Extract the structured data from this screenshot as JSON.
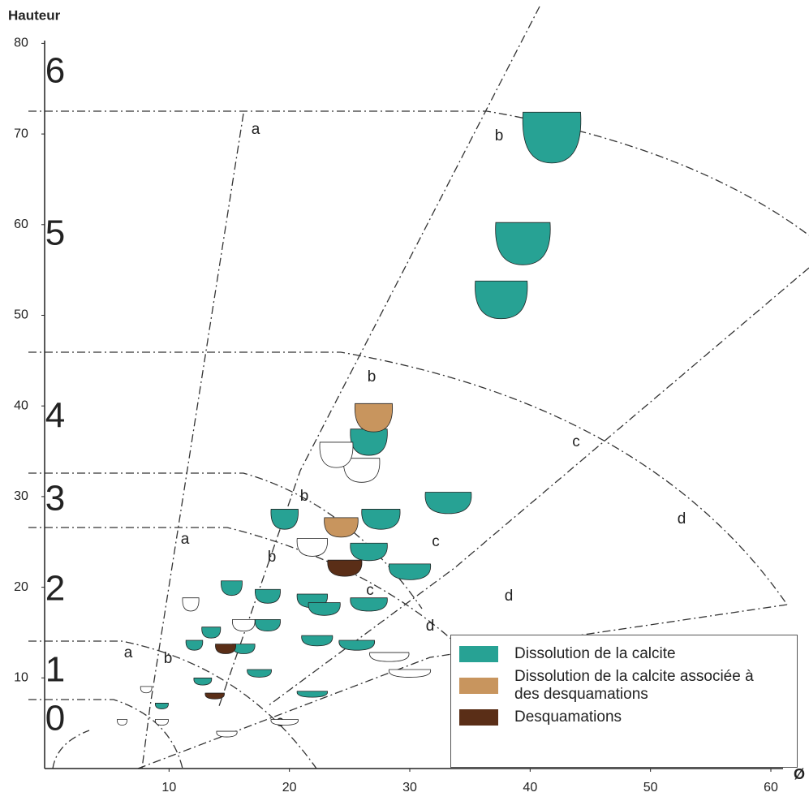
{
  "chart_data": {
    "type": "scatter",
    "x_label": "Ø",
    "y_label": "Hauteur",
    "xlim": [
      0,
      60
    ],
    "ylim": [
      0,
      80
    ],
    "xticks": [
      10,
      20,
      30,
      40,
      50,
      60
    ],
    "yticks": [
      10,
      20,
      30,
      40,
      50,
      60,
      70,
      80
    ],
    "zones": [
      "0",
      "1",
      "2",
      "3",
      "4",
      "5",
      "6"
    ],
    "annotations": [
      "a",
      "a",
      "a",
      "b",
      "b",
      "b",
      "b",
      "b",
      "c",
      "c",
      "c",
      "c",
      "d",
      "d",
      "d"
    ],
    "series": [
      {
        "name": "Dissolution de la calcite",
        "color": "#27a294",
        "x": [
          41.8,
          39.4,
          37.6,
          33.2,
          26.6,
          19.6,
          27.6,
          26.6,
          30.0,
          26.6,
          15.2,
          18.2,
          21.9,
          22.9,
          13.5,
          12.1,
          18.2,
          22.3,
          25.6,
          17.5,
          12.8,
          9.4,
          21.9,
          16.2
        ],
        "values": [
          69.6,
          57.9,
          51.7,
          29.3,
          36.0,
          27.5,
          27.5,
          23.9,
          21.7,
          18.1,
          19.9,
          19.0,
          18.5,
          17.6,
          15.0,
          13.6,
          15.8,
          14.1,
          13.6,
          10.5,
          9.6,
          6.9,
          8.2,
          13.2
        ]
      },
      {
        "name": "Dissolution de la calcite associée à des desquamations",
        "color": "#c8955e",
        "x": [
          27.0,
          24.3
        ],
        "values": [
          38.7,
          26.6
        ]
      },
      {
        "name": "Desquamations",
        "color": "#5a2e17",
        "x": [
          24.6,
          14.7,
          13.8
        ],
        "values": [
          22.1,
          13.2,
          8.0
        ]
      },
      {
        "color": "#ffffff",
        "x": [
          11.8,
          21.9,
          26.0,
          28.3,
          30.0,
          14.8,
          6.1,
          9.4,
          8.1,
          16.2,
          19.6,
          23.9
        ],
        "values": [
          18.1,
          24.4,
          32.9,
          12.3,
          10.5,
          3.8,
          5.1,
          5.1,
          8.7,
          15.8,
          5.1,
          34.6
        ]
      }
    ]
  }
}
